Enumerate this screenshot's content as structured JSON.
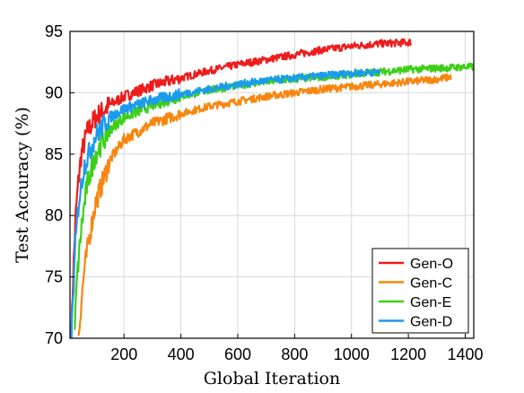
{
  "chart_data": {
    "type": "line",
    "title": "",
    "xlabel": "Global Iteration",
    "ylabel": "Test Accuracy (%)",
    "xlim": [
      10,
      1430
    ],
    "ylim": [
      70,
      95
    ],
    "xticks": [
      200,
      400,
      600,
      800,
      1000,
      1200,
      1400
    ],
    "yticks": [
      70,
      75,
      80,
      85,
      90,
      95
    ],
    "x_tick_labels": [
      "200",
      "400",
      "600",
      "800",
      "1000",
      "1200",
      "1400"
    ],
    "y_tick_labels": [
      "70",
      "75",
      "80",
      "85",
      "90",
      "95"
    ],
    "grid": true,
    "legend_position": "bottom-right",
    "series": [
      {
        "name": "Gen-O",
        "color": "#ee1c1c",
        "points": [
          [
            15,
            70.0
          ],
          [
            20,
            74.5
          ],
          [
            30,
            80.0
          ],
          [
            40,
            83.0
          ],
          [
            50,
            85.0
          ],
          [
            70,
            86.8
          ],
          [
            100,
            88.0
          ],
          [
            150,
            89.0
          ],
          [
            200,
            89.7
          ],
          [
            300,
            90.6
          ],
          [
            400,
            91.2
          ],
          [
            500,
            91.8
          ],
          [
            600,
            92.3
          ],
          [
            700,
            92.7
          ],
          [
            800,
            93.1
          ],
          [
            900,
            93.5
          ],
          [
            1000,
            93.8
          ],
          [
            1100,
            94.0
          ],
          [
            1200,
            94.1
          ],
          [
            1210,
            94.15
          ]
        ]
      },
      {
        "name": "Gen-C",
        "color": "#f7860f",
        "points": [
          [
            40,
            70.0
          ],
          [
            50,
            73.0
          ],
          [
            60,
            75.5
          ],
          [
            80,
            78.5
          ],
          [
            100,
            81.0
          ],
          [
            150,
            84.5
          ],
          [
            200,
            86.2
          ],
          [
            300,
            87.5
          ],
          [
            400,
            88.3
          ],
          [
            500,
            88.9
          ],
          [
            600,
            89.3
          ],
          [
            700,
            89.7
          ],
          [
            800,
            90.0
          ],
          [
            900,
            90.3
          ],
          [
            1000,
            90.5
          ],
          [
            1100,
            90.7
          ],
          [
            1200,
            90.9
          ],
          [
            1300,
            91.1
          ],
          [
            1350,
            91.3
          ]
        ]
      },
      {
        "name": "Gen-E",
        "color": "#3ccf17",
        "points": [
          [
            25,
            70.0
          ],
          [
            35,
            75.0
          ],
          [
            50,
            79.0
          ],
          [
            70,
            82.5
          ],
          [
            100,
            85.0
          ],
          [
            150,
            87.0
          ],
          [
            200,
            88.0
          ],
          [
            300,
            89.0
          ],
          [
            400,
            89.7
          ],
          [
            500,
            90.2
          ],
          [
            600,
            90.6
          ],
          [
            700,
            90.9
          ],
          [
            800,
            91.1
          ],
          [
            900,
            91.3
          ],
          [
            1000,
            91.5
          ],
          [
            1100,
            91.7
          ],
          [
            1200,
            91.9
          ],
          [
            1300,
            92.0
          ],
          [
            1400,
            92.1
          ],
          [
            1430,
            92.1
          ]
        ]
      },
      {
        "name": "Gen-D",
        "color": "#1a9bf0",
        "points": [
          [
            15,
            70.0
          ],
          [
            20,
            73.0
          ],
          [
            30,
            78.0
          ],
          [
            40,
            81.0
          ],
          [
            60,
            84.0
          ],
          [
            100,
            86.5
          ],
          [
            150,
            88.0
          ],
          [
            200,
            88.7
          ],
          [
            300,
            89.4
          ],
          [
            400,
            89.9
          ],
          [
            500,
            90.3
          ],
          [
            600,
            90.7
          ],
          [
            700,
            91.0
          ],
          [
            800,
            91.2
          ],
          [
            900,
            91.4
          ],
          [
            1000,
            91.6
          ],
          [
            1100,
            91.7
          ]
        ]
      }
    ]
  }
}
